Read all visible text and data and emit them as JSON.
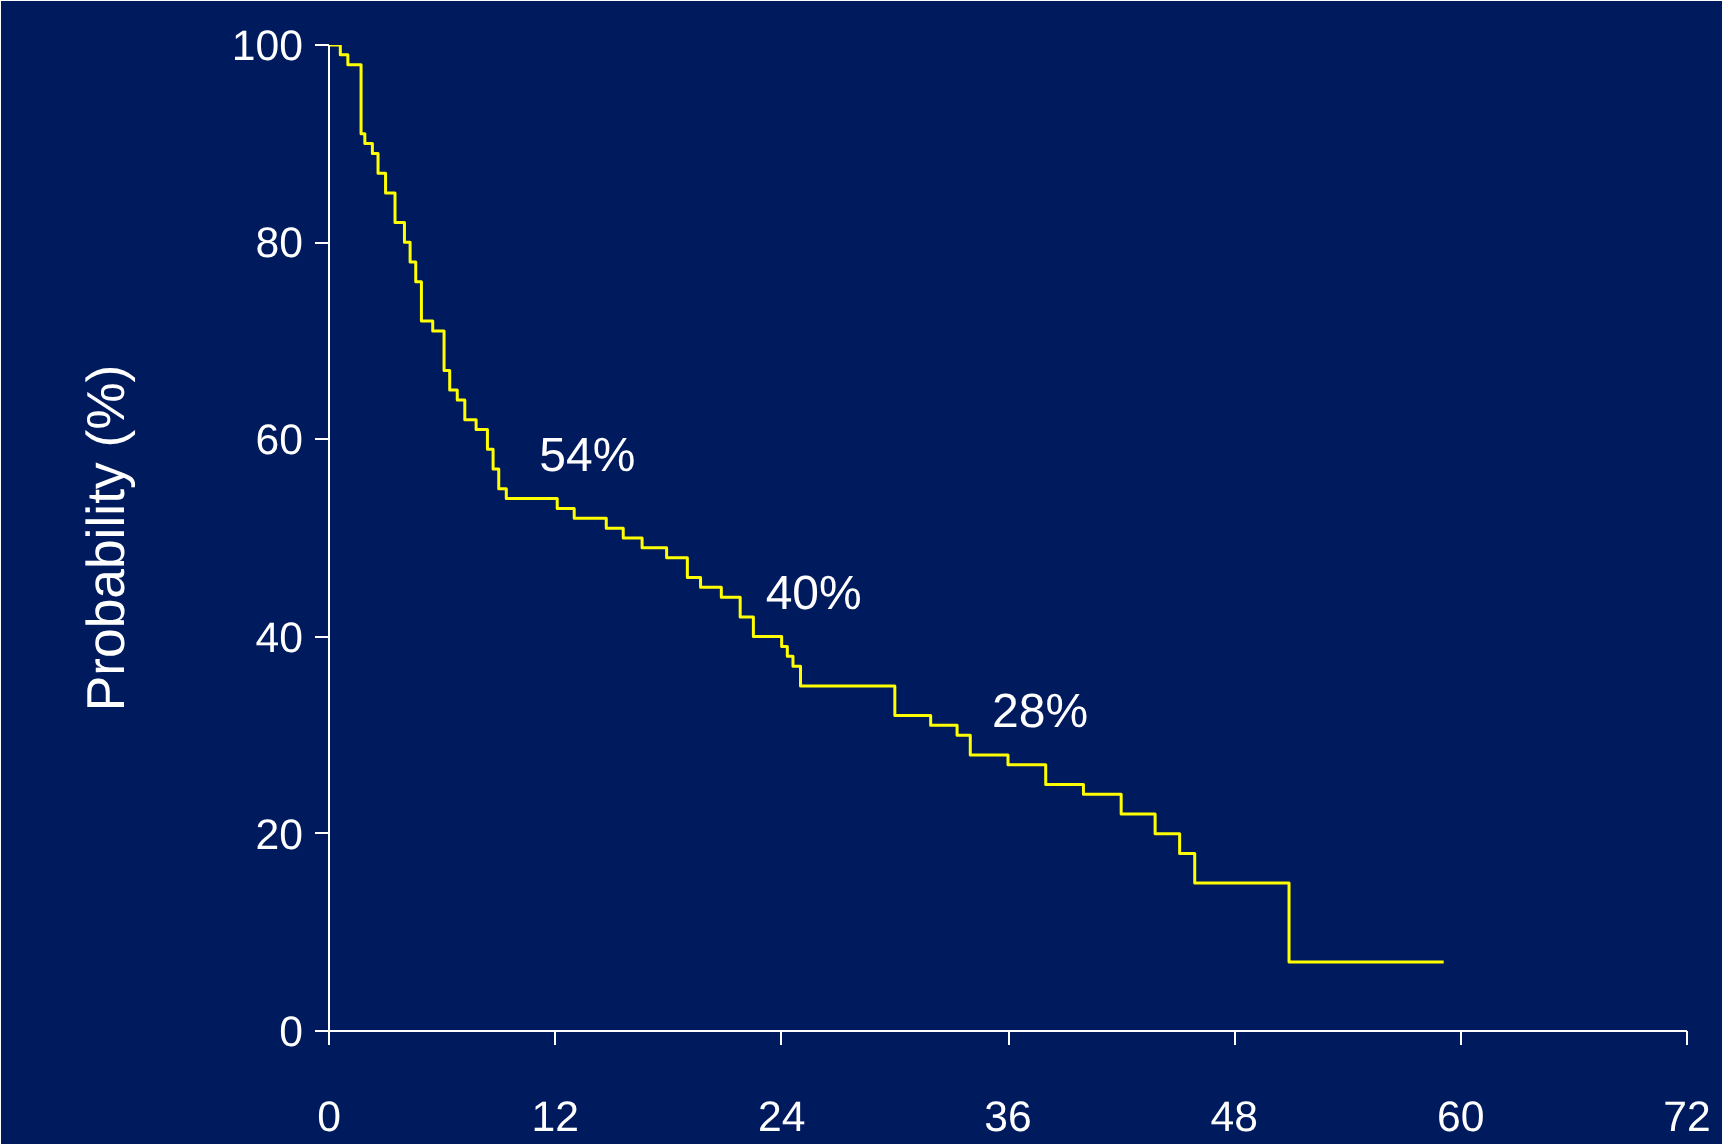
{
  "chart_data": {
    "type": "step",
    "ylabel": "Probability (%)",
    "x": [
      0,
      0.6,
      1.0,
      1.7,
      1.9,
      2.3,
      2.6,
      3.0,
      3.5,
      4.0,
      4.3,
      4.6,
      4.9,
      5.5,
      6.1,
      6.4,
      6.8,
      7.2,
      7.8,
      8.4,
      8.7,
      9.0,
      9.4,
      12.1,
      13.0,
      14.7,
      15.6,
      16.6,
      17.9,
      19.0,
      19.7,
      20.8,
      21.8,
      22.5,
      24.0,
      24.3,
      24.6,
      25.0,
      30.0,
      31.9,
      33.3,
      34.0,
      36.0,
      38.0,
      40.0,
      42.0,
      43.8,
      45.1,
      45.9,
      50.9,
      59.1
    ],
    "series": [
      {
        "color": "#ffff00",
        "values": [
          100,
          99,
          98,
          91,
          90,
          89,
          87,
          85,
          82,
          80,
          78,
          76,
          72,
          71,
          67,
          65,
          64,
          62,
          61,
          59,
          57,
          55,
          54,
          53,
          52,
          51,
          50,
          49,
          48,
          46,
          45,
          44,
          42,
          40,
          39,
          38,
          37,
          35,
          32,
          31,
          30,
          28,
          27,
          25,
          24,
          22,
          20,
          18,
          15,
          7,
          7
        ]
      }
    ],
    "xlim": [
      0,
      72
    ],
    "xticks": [
      0,
      12,
      24,
      36,
      48,
      60,
      72
    ],
    "ylim": [
      0,
      100
    ],
    "yticks": [
      0,
      20,
      40,
      60,
      80,
      100
    ],
    "annotations": [
      {
        "text": "54%",
        "x": 12,
        "y": 54
      },
      {
        "text": "40%",
        "x": 24,
        "y": 40
      },
      {
        "text": "28%",
        "x": 36,
        "y": 28
      }
    ],
    "grid": false,
    "line_style": "solid"
  }
}
